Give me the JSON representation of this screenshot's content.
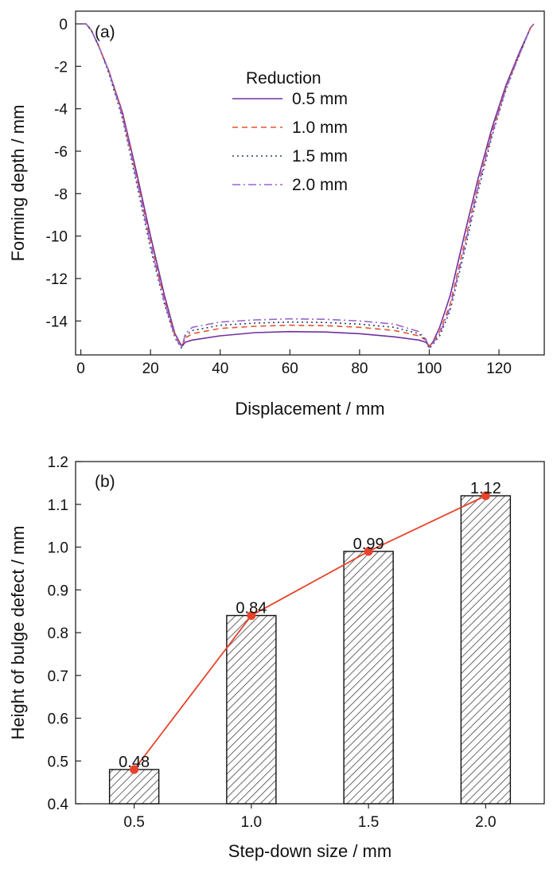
{
  "chart_data": [
    {
      "type": "line",
      "panel_label": "(a)",
      "xlabel": "Displacement / mm",
      "ylabel": "Forming depth / mm",
      "xlim": [
        -1.5,
        133
      ],
      "ylim": [
        -15.6,
        0.6
      ],
      "xticks": [
        0,
        20,
        40,
        60,
        80,
        100,
        120
      ],
      "yticks": [
        0,
        -2,
        -4,
        -6,
        -8,
        -10,
        -12,
        -14
      ],
      "legend_title": "Reduction",
      "legend_position": "top-center",
      "series": [
        {
          "name": "0.5 mm",
          "color": "#7030a0",
          "dash": "",
          "bottom": -14.5,
          "x": [
            0,
            1.5,
            3,
            5,
            8,
            12,
            16,
            20,
            24,
            27,
            29,
            30,
            32,
            40,
            50,
            60,
            70,
            80,
            90,
            97,
            99,
            100,
            101,
            103,
            106,
            110,
            114,
            118,
            122,
            126,
            129,
            130
          ],
          "y": [
            0,
            0,
            -0.3,
            -1.0,
            -2.2,
            -4.2,
            -7.0,
            -10.0,
            -12.8,
            -14.6,
            -15.2,
            -15.0,
            -14.9,
            -14.7,
            -14.55,
            -14.5,
            -14.52,
            -14.6,
            -14.75,
            -14.9,
            -15.0,
            -15.2,
            -15.0,
            -14.3,
            -12.8,
            -10.0,
            -7.3,
            -4.9,
            -2.9,
            -1.3,
            -0.2,
            0
          ]
        },
        {
          "name": "1.0 mm",
          "color": "#e8532a",
          "dash": "7,5",
          "bottom": -14.2,
          "x": [
            0,
            1.5,
            3,
            5,
            8,
            12,
            16,
            20,
            24,
            27,
            29,
            30,
            32,
            40,
            50,
            60,
            70,
            80,
            90,
            97,
            99,
            100,
            101,
            103,
            106,
            110,
            114,
            118,
            122,
            126,
            129,
            130
          ],
          "y": [
            0,
            0,
            -0.3,
            -1.0,
            -2.2,
            -4.3,
            -7.2,
            -10.3,
            -13.0,
            -14.7,
            -15.2,
            -14.8,
            -14.6,
            -14.35,
            -14.25,
            -14.2,
            -14.22,
            -14.3,
            -14.45,
            -14.7,
            -14.9,
            -15.2,
            -15.0,
            -14.5,
            -13.2,
            -10.4,
            -7.6,
            -5.1,
            -3.0,
            -1.4,
            -0.2,
            0
          ]
        },
        {
          "name": "1.5 mm",
          "color": "#1f3f7a",
          "dash": "2,4",
          "bottom": -14.05,
          "x": [
            0,
            1.5,
            3,
            5,
            8,
            12,
            16,
            20,
            24,
            27,
            29,
            30,
            32,
            40,
            50,
            60,
            70,
            80,
            90,
            97,
            99,
            100,
            101,
            103,
            106,
            110,
            114,
            118,
            122,
            126,
            129,
            130
          ],
          "y": [
            0,
            0,
            -0.3,
            -1.0,
            -2.3,
            -4.5,
            -7.5,
            -10.6,
            -13.2,
            -14.8,
            -15.3,
            -14.7,
            -14.45,
            -14.2,
            -14.1,
            -14.05,
            -14.07,
            -14.15,
            -14.3,
            -14.6,
            -14.9,
            -15.3,
            -15.1,
            -14.7,
            -13.5,
            -10.8,
            -7.9,
            -5.3,
            -3.1,
            -1.4,
            -0.2,
            0
          ]
        },
        {
          "name": "2.0 mm",
          "color": "#9966cc",
          "dash": "10,4,2,4",
          "bottom": -13.9,
          "x": [
            0,
            1.5,
            3,
            5,
            8,
            12,
            16,
            20,
            24,
            27,
            29,
            30,
            32,
            40,
            50,
            60,
            70,
            80,
            90,
            97,
            99,
            100,
            101,
            103,
            106,
            110,
            114,
            118,
            122,
            126,
            129,
            130
          ],
          "y": [
            0,
            0,
            -0.3,
            -1.0,
            -2.2,
            -4.4,
            -7.3,
            -10.4,
            -13.1,
            -14.75,
            -15.25,
            -14.6,
            -14.3,
            -14.05,
            -13.95,
            -13.9,
            -13.92,
            -14.0,
            -14.15,
            -14.5,
            -14.85,
            -15.25,
            -15.05,
            -14.6,
            -13.35,
            -10.6,
            -7.7,
            -5.2,
            -3.05,
            -1.4,
            -0.2,
            0
          ]
        }
      ]
    },
    {
      "type": "bar",
      "panel_label": "(b)",
      "xlabel": "Step-down size / mm",
      "ylabel": "Height of bulge defect / mm",
      "categories": [
        "0.5",
        "1.0",
        "1.5",
        "2.0"
      ],
      "values": [
        0.48,
        0.84,
        0.99,
        1.12
      ],
      "value_labels": [
        "0.48",
        "0.84",
        "0.99",
        "1.12"
      ],
      "ylim": [
        0.4,
        1.2
      ],
      "yticks": [
        "0.4",
        "0.5",
        "0.6",
        "0.7",
        "0.8",
        "0.9",
        "1.0",
        "1.1",
        "1.2"
      ],
      "bar_fill": "hatched",
      "line_color": "#e8432a"
    }
  ]
}
